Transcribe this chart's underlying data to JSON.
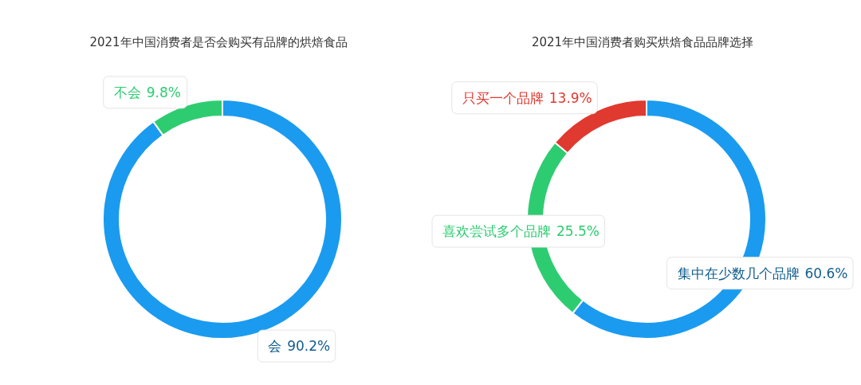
{
  "chart_data": [
    {
      "type": "donut",
      "title": "2021年中国消费者是否会购买有品牌的烘焙食品",
      "categories": [
        "会",
        "不会"
      ],
      "values": [
        90.2,
        9.8
      ],
      "colors": [
        "#1a9bef",
        "#2ecc71"
      ],
      "value_labels": [
        "90.2%",
        "9.8%"
      ],
      "legend": false
    },
    {
      "type": "donut",
      "title": "2021年中国消费者购买烘焙食品品牌选择",
      "categories": [
        "集中在少数几个品牌",
        "喜欢尝试多个品牌",
        "只买一个品牌"
      ],
      "values": [
        60.6,
        25.5,
        13.9
      ],
      "colors": [
        "#1a9bef",
        "#2ecc71",
        "#e0392f"
      ],
      "value_labels": [
        "60.6%",
        "25.5%",
        "13.9%"
      ],
      "legend": false
    }
  ]
}
